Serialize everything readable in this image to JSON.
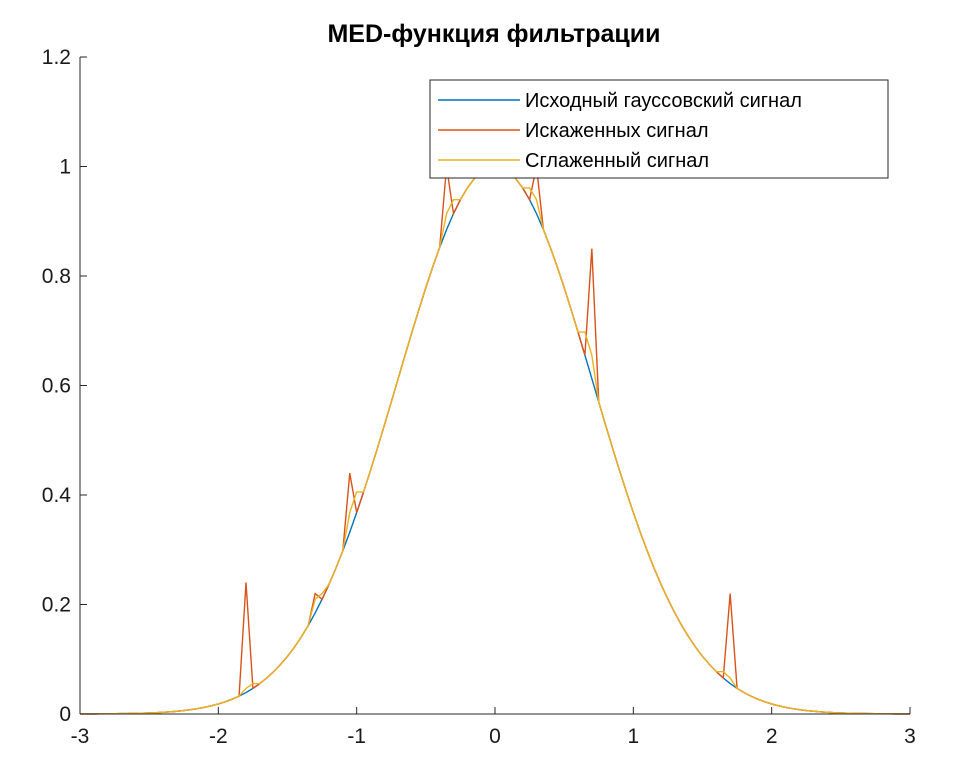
{
  "chart_data": {
    "type": "line",
    "title": "MED-функция фильтрации",
    "xlabel": "",
    "ylabel": "",
    "xlim": [
      -3,
      3
    ],
    "ylim": [
      0,
      1.2
    ],
    "xticks": [
      -3,
      -2,
      -1,
      0,
      1,
      2,
      3
    ],
    "xtick_labels": [
      "-3",
      "-2",
      "-1",
      "0",
      "1",
      "2",
      "3"
    ],
    "yticks": [
      0,
      0.2,
      0.4,
      0.6,
      0.8,
      1,
      1.2
    ],
    "ytick_labels": [
      "0",
      "0.2",
      "0.4",
      "0.6",
      "0.8",
      "1",
      "1.2"
    ],
    "grid": false,
    "legend_position": "top-right",
    "series": [
      {
        "name": "Исходный гауссовский сигнал",
        "color": "#0072BD",
        "function": "gaussian",
        "x_range": [
          -3,
          3
        ],
        "x_step": 0.05
      },
      {
        "name": "Искаженных сигнал",
        "color": "#D95319",
        "function": "gaussian",
        "x_range": [
          -3,
          3
        ],
        "x_step": 0.05,
        "impulses": [
          {
            "x": -1.8,
            "y": 0.24
          },
          {
            "x": -1.3,
            "y": 0.22
          },
          {
            "x": -1.05,
            "y": 0.44
          },
          {
            "x": -0.35,
            "y": 1.0
          },
          {
            "x": 0.3,
            "y": 1.0
          },
          {
            "x": 0.7,
            "y": 0.85
          },
          {
            "x": 1.7,
            "y": 0.22
          }
        ]
      },
      {
        "name": "Сглаженный сигнал",
        "color": "#EDB120",
        "function": "gaussian_median_filtered",
        "x_range": [
          -3,
          3
        ],
        "x_step": 0.05
      }
    ]
  }
}
